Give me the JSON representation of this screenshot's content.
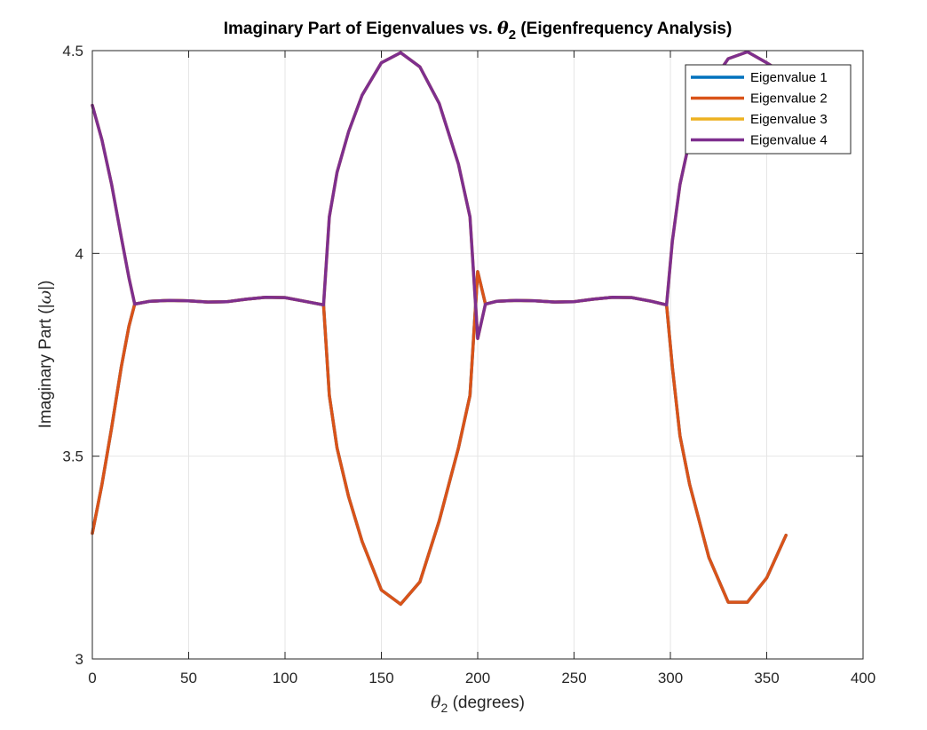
{
  "chart_data": {
    "type": "line",
    "title": {
      "prefix": "Imaginary Part of Eigenvalues vs. ",
      "symbol": "θ",
      "subscript": "2",
      "suffix": " (Eigenfrequency Analysis)"
    },
    "xlabel": {
      "symbol": "θ",
      "subscript": "2",
      "suffix": " (degrees)"
    },
    "ylabel": {
      "prefix": "Imaginary Part (|",
      "symbol": "ω",
      "suffix": "|)"
    },
    "xlim": [
      0,
      400
    ],
    "ylim": [
      3,
      4.5
    ],
    "xticks": [
      0,
      50,
      100,
      150,
      200,
      250,
      300,
      350,
      400
    ],
    "yticks": [
      3,
      3.5,
      4,
      4.5
    ],
    "ytick_labels": [
      "3",
      "3.5",
      "4",
      "4.5"
    ],
    "grid": true,
    "legend_position": "top-right",
    "series": [
      {
        "name": "Eigenvalue 1",
        "color": "#0072BD",
        "x": [
          0,
          5,
          10,
          15,
          19,
          22,
          30,
          40,
          50,
          60,
          70,
          80,
          90,
          100,
          110,
          120,
          123,
          127,
          133,
          140,
          150,
          160,
          170,
          180,
          190,
          196,
          200,
          204,
          210,
          220,
          230,
          240,
          250,
          260,
          270,
          280,
          290,
          298,
          301,
          305,
          310,
          320,
          330,
          340,
          350,
          360
        ],
        "y": [
          3.31,
          3.43,
          3.57,
          3.72,
          3.82,
          3.875,
          3.882,
          3.884,
          3.883,
          3.88,
          3.881,
          3.887,
          3.892,
          3.891,
          3.882,
          3.873,
          3.65,
          3.52,
          3.4,
          3.29,
          3.17,
          3.135,
          3.19,
          3.34,
          3.52,
          3.65,
          3.955,
          3.875,
          3.882,
          3.884,
          3.883,
          3.88,
          3.881,
          3.887,
          3.892,
          3.891,
          3.882,
          3.873,
          3.72,
          3.55,
          3.43,
          3.25,
          3.14,
          3.14,
          3.2,
          3.305
        ]
      },
      {
        "name": "Eigenvalue 2",
        "color": "#D95319",
        "x": [
          0,
          5,
          10,
          15,
          19,
          22,
          30,
          40,
          50,
          60,
          70,
          80,
          90,
          100,
          110,
          120,
          123,
          127,
          133,
          140,
          150,
          160,
          170,
          180,
          190,
          196,
          200,
          204,
          210,
          220,
          230,
          240,
          250,
          260,
          270,
          280,
          290,
          298,
          301,
          305,
          310,
          320,
          330,
          340,
          350,
          360
        ],
        "y": [
          3.31,
          3.43,
          3.57,
          3.72,
          3.82,
          3.875,
          3.882,
          3.884,
          3.883,
          3.88,
          3.881,
          3.887,
          3.892,
          3.891,
          3.882,
          3.873,
          3.65,
          3.52,
          3.4,
          3.29,
          3.17,
          3.135,
          3.19,
          3.34,
          3.52,
          3.65,
          3.955,
          3.875,
          3.882,
          3.884,
          3.883,
          3.88,
          3.881,
          3.887,
          3.892,
          3.891,
          3.882,
          3.873,
          3.72,
          3.55,
          3.43,
          3.25,
          3.14,
          3.14,
          3.2,
          3.305
        ]
      },
      {
        "name": "Eigenvalue 3",
        "color": "#EDB120",
        "x": [
          0,
          5,
          10,
          15,
          19,
          22,
          30,
          40,
          50,
          60,
          70,
          80,
          90,
          100,
          110,
          120,
          123,
          127,
          133,
          140,
          150,
          160,
          170,
          180,
          190,
          196,
          200,
          204,
          210,
          220,
          230,
          240,
          250,
          260,
          270,
          280,
          290,
          298,
          301,
          305,
          310,
          320,
          330,
          340,
          350,
          360
        ],
        "y": [
          4.365,
          4.28,
          4.17,
          4.04,
          3.94,
          3.875,
          3.882,
          3.884,
          3.883,
          3.88,
          3.881,
          3.887,
          3.892,
          3.891,
          3.882,
          3.873,
          4.09,
          4.2,
          4.3,
          4.39,
          4.47,
          4.495,
          4.46,
          4.37,
          4.22,
          4.09,
          3.79,
          3.875,
          3.882,
          3.884,
          3.883,
          3.88,
          3.881,
          3.887,
          3.892,
          3.891,
          3.882,
          3.873,
          4.03,
          4.17,
          4.28,
          4.41,
          4.48,
          4.497,
          4.47,
          4.44
        ]
      },
      {
        "name": "Eigenvalue 4",
        "color": "#7E2F8E",
        "x": [
          0,
          5,
          10,
          15,
          19,
          22,
          30,
          40,
          50,
          60,
          70,
          80,
          90,
          100,
          110,
          120,
          123,
          127,
          133,
          140,
          150,
          160,
          170,
          180,
          190,
          196,
          200,
          204,
          210,
          220,
          230,
          240,
          250,
          260,
          270,
          280,
          290,
          298,
          301,
          305,
          310,
          320,
          330,
          340,
          350,
          360
        ],
        "y": [
          4.365,
          4.28,
          4.17,
          4.04,
          3.94,
          3.875,
          3.882,
          3.884,
          3.883,
          3.88,
          3.881,
          3.887,
          3.892,
          3.891,
          3.882,
          3.873,
          4.09,
          4.2,
          4.3,
          4.39,
          4.47,
          4.495,
          4.46,
          4.37,
          4.22,
          4.09,
          3.79,
          3.875,
          3.882,
          3.884,
          3.883,
          3.88,
          3.881,
          3.887,
          3.892,
          3.891,
          3.882,
          3.873,
          4.03,
          4.17,
          4.28,
          4.41,
          4.48,
          4.497,
          4.47,
          4.44
        ]
      }
    ]
  }
}
